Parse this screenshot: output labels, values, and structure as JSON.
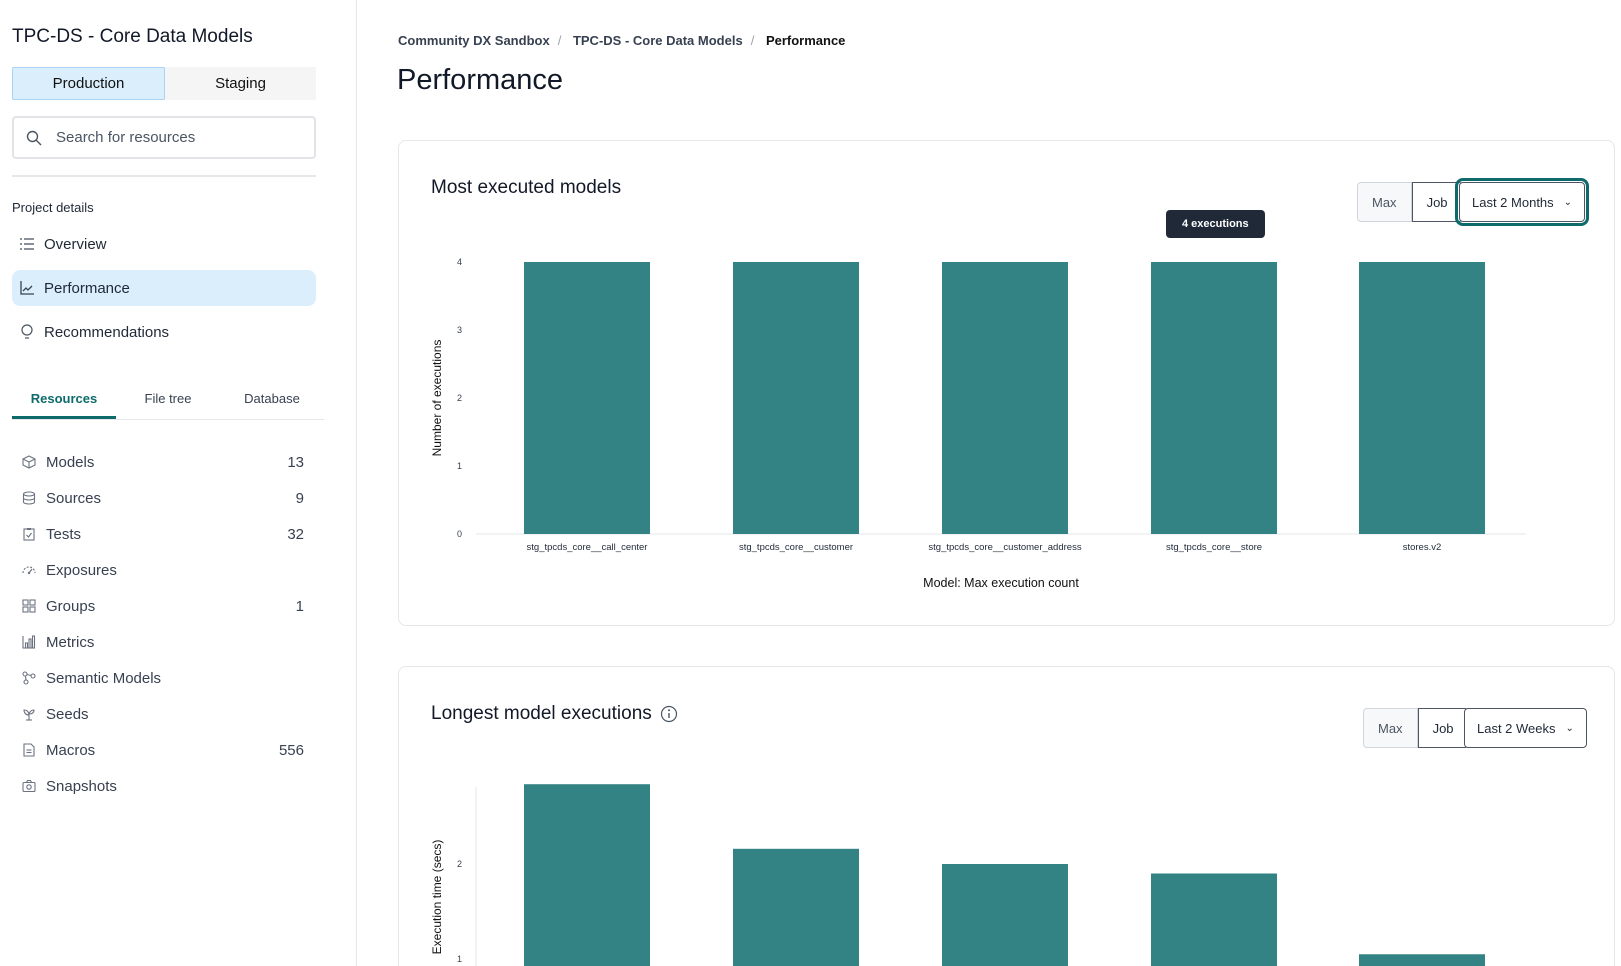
{
  "sidebar": {
    "project_title": "TPC-DS - Core Data Models",
    "env_tabs": [
      {
        "label": "Production",
        "active": true
      },
      {
        "label": "Staging",
        "active": false
      }
    ],
    "search_placeholder": "Search for resources",
    "project_details_label": "Project details",
    "nav": [
      {
        "label": "Overview",
        "icon": "list-icon"
      },
      {
        "label": "Performance",
        "icon": "line-chart-icon",
        "active": true
      },
      {
        "label": "Recommendations",
        "icon": "lightbulb-icon"
      }
    ],
    "tabs": [
      {
        "label": "Resources",
        "active": true
      },
      {
        "label": "File tree"
      },
      {
        "label": "Database"
      }
    ],
    "resources": [
      {
        "label": "Models",
        "count": "13",
        "icon": "cube-icon"
      },
      {
        "label": "Sources",
        "count": "9",
        "icon": "database-icon"
      },
      {
        "label": "Tests",
        "count": "32",
        "icon": "clipboard-check-icon"
      },
      {
        "label": "Exposures",
        "count": "",
        "icon": "gauge-icon"
      },
      {
        "label": "Groups",
        "count": "1",
        "icon": "grid-icon"
      },
      {
        "label": "Metrics",
        "count": "",
        "icon": "bar-chart-icon"
      },
      {
        "label": "Semantic Models",
        "count": "",
        "icon": "graph-nodes-icon"
      },
      {
        "label": "Seeds",
        "count": "",
        "icon": "sprout-icon"
      },
      {
        "label": "Macros",
        "count": "556",
        "icon": "document-icon"
      },
      {
        "label": "Snapshots",
        "count": "",
        "icon": "camera-icon"
      }
    ]
  },
  "breadcrumb": [
    "Community DX Sandbox",
    "TPC-DS - Core Data Models",
    "Performance"
  ],
  "page_title": "Performance",
  "accent": "#348384",
  "chart_data": [
    {
      "type": "bar",
      "title": "Most executed models",
      "filters": {
        "max": "Max",
        "job": "Job",
        "range": "Last 2 Months"
      },
      "categories": [
        "stg_tpcds_core__call_center",
        "stg_tpcds_core__customer",
        "stg_tpcds_core__customer_address",
        "stg_tpcds_core__store",
        "stores.v2"
      ],
      "values": [
        4,
        4,
        4,
        4,
        4
      ],
      "xlabel": "Model: Max execution count",
      "ylabel": "Number of executions",
      "yticks": [
        "0",
        "1",
        "2",
        "3",
        "4"
      ],
      "ylim": [
        0,
        4
      ],
      "tooltip": "4 executions"
    },
    {
      "type": "bar",
      "title": "Longest model executions",
      "filters": {
        "max": "Max",
        "job": "Job",
        "range": "Last 2 Weeks"
      },
      "values": [
        2.84,
        2.16,
        2.0,
        1.9,
        1.05
      ],
      "ylabel": "Execution time (secs)",
      "yticks": [
        "1",
        "2"
      ]
    }
  ]
}
